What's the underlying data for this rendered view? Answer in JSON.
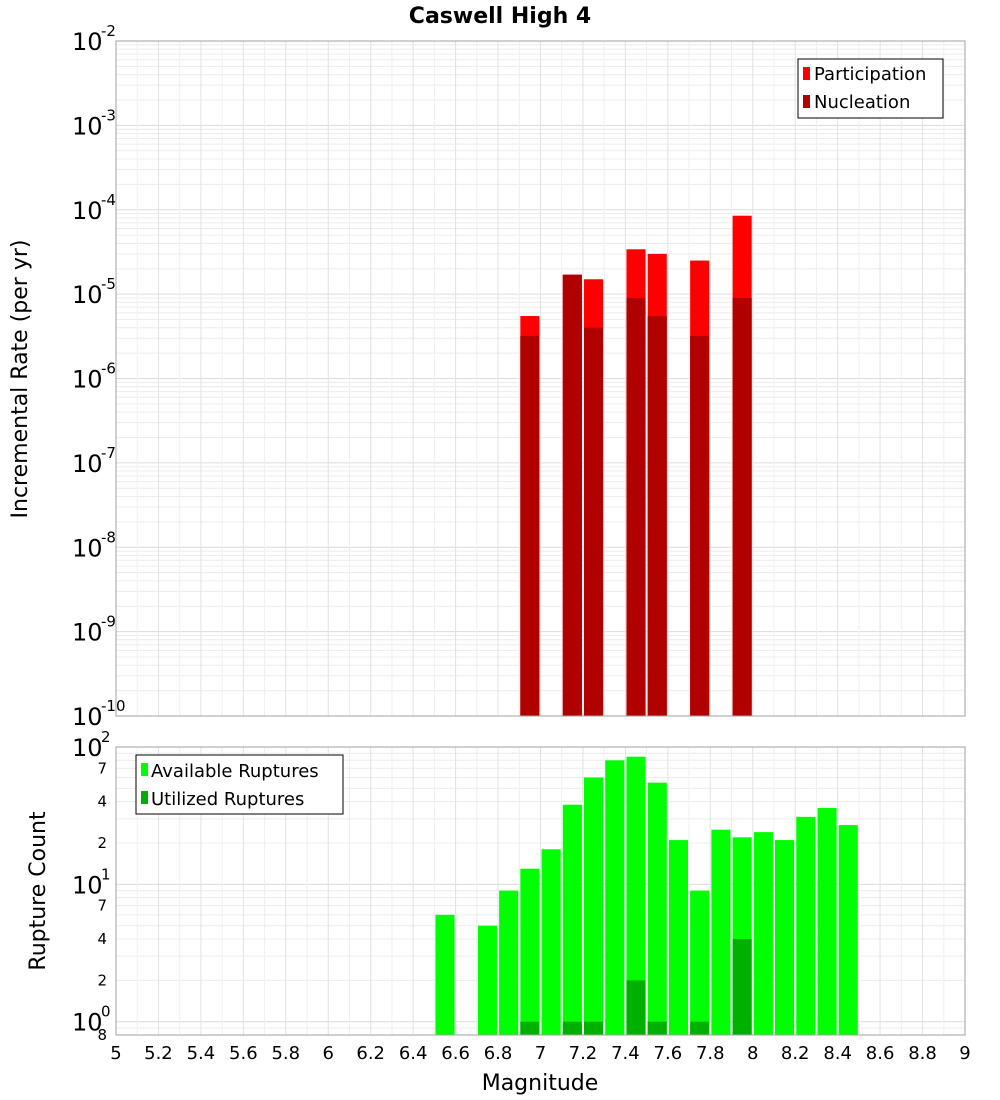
{
  "title": "Caswell High 4",
  "chart_data": [
    {
      "type": "bar",
      "ylabel": "Incremental Rate (per yr)",
      "yscale": "log",
      "ylim": [
        1e-10,
        0.01
      ],
      "xlim": [
        5,
        9
      ],
      "grid": true,
      "legend_position": "top-right",
      "y_ticks": [
        {
          "base": "10",
          "exp": "-2",
          "value": 0.01
        },
        {
          "base": "10",
          "exp": "-3",
          "value": 0.001
        },
        {
          "base": "10",
          "exp": "-4",
          "value": 0.0001
        },
        {
          "base": "10",
          "exp": "-5",
          "value": 1e-05
        },
        {
          "base": "10",
          "exp": "-6",
          "value": 1e-06
        },
        {
          "base": "10",
          "exp": "-7",
          "value": 1e-07
        },
        {
          "base": "10",
          "exp": "-8",
          "value": 1e-08
        },
        {
          "base": "10",
          "exp": "-9",
          "value": 1e-09
        },
        {
          "base": "10",
          "exp": "-10",
          "value": 1e-10
        }
      ],
      "bar_width": 0.09,
      "series": [
        {
          "name": "Participation",
          "color": "#ff0000",
          "x": [
            6.95,
            7.15,
            7.25,
            7.45,
            7.55,
            7.75,
            7.95
          ],
          "values": [
            5.5e-06,
            1.7e-05,
            1.5e-05,
            3.4e-05,
            3e-05,
            2.5e-05,
            8.5e-05
          ]
        },
        {
          "name": "Nucleation",
          "color": "#b00000",
          "x": [
            6.95,
            7.15,
            7.25,
            7.45,
            7.55,
            7.75,
            7.95
          ],
          "values": [
            3.2e-06,
            1.7e-05,
            4e-06,
            9e-06,
            5.5e-06,
            3.2e-06,
            9e-06
          ]
        }
      ]
    },
    {
      "type": "bar",
      "xlabel": "Magnitude",
      "ylabel": "Rupture Count",
      "yscale": "log",
      "ylim": [
        0.8,
        100
      ],
      "xlim": [
        5,
        9
      ],
      "grid": true,
      "legend_position": "top-left",
      "y_major_ticks": [
        {
          "base": "10",
          "exp": "2",
          "value": 100
        },
        {
          "base": "10",
          "exp": "1",
          "value": 10
        },
        {
          "base": "10",
          "exp": "0",
          "value": 1
        }
      ],
      "y_minor_ticks": [
        {
          "label": "7",
          "value": 70
        },
        {
          "label": "4",
          "value": 40
        },
        {
          "label": "2",
          "value": 20
        },
        {
          "label": "7",
          "value": 7
        },
        {
          "label": "4",
          "value": 4
        },
        {
          "label": "2",
          "value": 2
        },
        {
          "label": "8",
          "value": 0.8
        }
      ],
      "x_ticks": [
        "5",
        "5.2",
        "5.4",
        "5.6",
        "5.8",
        "6",
        "6.2",
        "6.4",
        "6.6",
        "6.8",
        "7",
        "7.2",
        "7.4",
        "7.6",
        "7.8",
        "8",
        "8.2",
        "8.4",
        "8.6",
        "8.8",
        "9"
      ],
      "bar_width": 0.09,
      "series": [
        {
          "name": "Available Ruptures",
          "color": "#00ff00",
          "x": [
            6.55,
            6.75,
            6.85,
            6.95,
            7.05,
            7.15,
            7.25,
            7.35,
            7.45,
            7.55,
            7.65,
            7.75,
            7.85,
            7.95,
            8.05,
            8.15,
            8.25,
            8.35,
            8.45
          ],
          "values": [
            6,
            5,
            9,
            13,
            18,
            38,
            60,
            80,
            85,
            55,
            21,
            9,
            25,
            22,
            24,
            21,
            31,
            36,
            27
          ]
        },
        {
          "name": "Utilized Ruptures",
          "color": "#00b000",
          "x": [
            6.95,
            7.15,
            7.25,
            7.45,
            7.55,
            7.75,
            7.95
          ],
          "values": [
            1,
            1,
            1,
            2,
            1,
            1,
            4
          ]
        }
      ]
    }
  ]
}
